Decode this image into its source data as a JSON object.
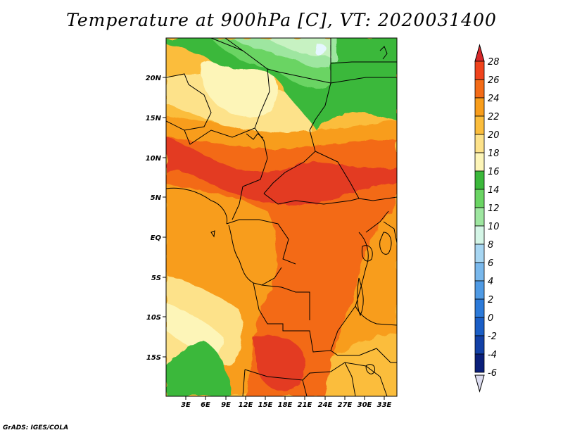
{
  "title": "Temperature at 900hPa [C], VT: 2020031400",
  "footer": "GrADS: IGES/COLA",
  "map": {
    "y_ticks": [
      "20N",
      "15N",
      "10N",
      "5N",
      "EQ",
      "5S",
      "10S",
      "15S"
    ],
    "x_ticks": [
      "3E",
      "6E",
      "9E",
      "12E",
      "15E",
      "18E",
      "21E",
      "24E",
      "27E",
      "30E",
      "33E"
    ]
  },
  "colorbar": {
    "labels": [
      "28",
      "26",
      "24",
      "22",
      "20",
      "18",
      "16",
      "14",
      "12",
      "10",
      "8",
      "6",
      "4",
      "2",
      "0",
      "-2",
      "-4",
      "-6"
    ],
    "colors": [
      "#d7282a",
      "#f0431c",
      "#f36b17",
      "#f89d1b",
      "#fbbd3c",
      "#fde28a",
      "#fdf5b8",
      "#3bb83b",
      "#6ad463",
      "#9ee6a0",
      "#d4f5e6",
      "#a7d6f2",
      "#79b8ec",
      "#4f9ae4",
      "#2c7ad9",
      "#1a5ec6",
      "#1240a6",
      "#0a1f7a",
      "#dcdcf0"
    ]
  }
}
